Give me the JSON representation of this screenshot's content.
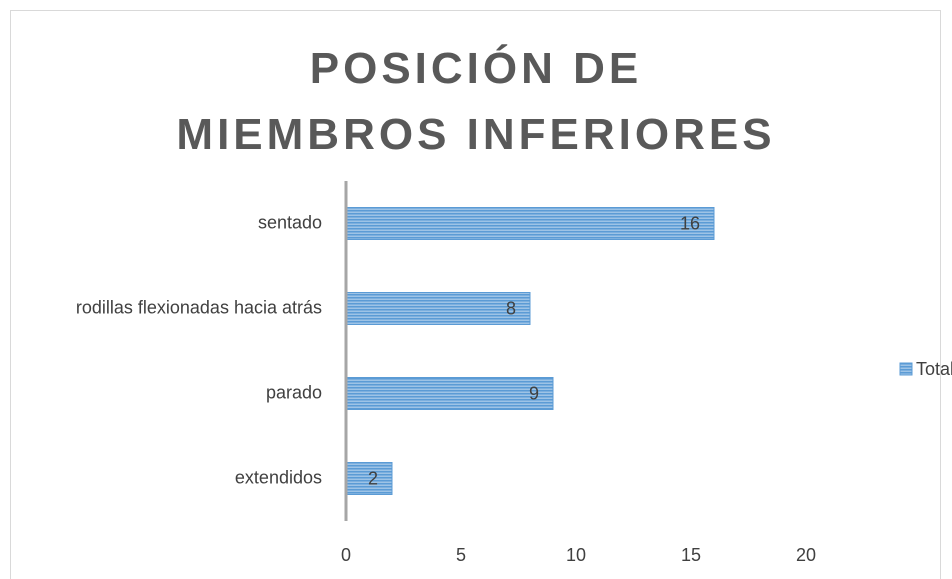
{
  "chart_data": {
    "type": "bar",
    "orientation": "horizontal",
    "title": "POSICIÓN DE MIEMBROS INFERIORES",
    "categories": [
      "sentado",
      "rodillas flexionadas hacia atrás",
      "parado",
      "extendidos"
    ],
    "series": [
      {
        "name": "Total",
        "color": "#5b9bd5",
        "values": [
          16,
          8,
          9,
          2
        ]
      }
    ],
    "xlim": [
      0,
      20
    ],
    "xticks": [
      0,
      5,
      10,
      15,
      20
    ],
    "grid": false,
    "legend": "right"
  }
}
